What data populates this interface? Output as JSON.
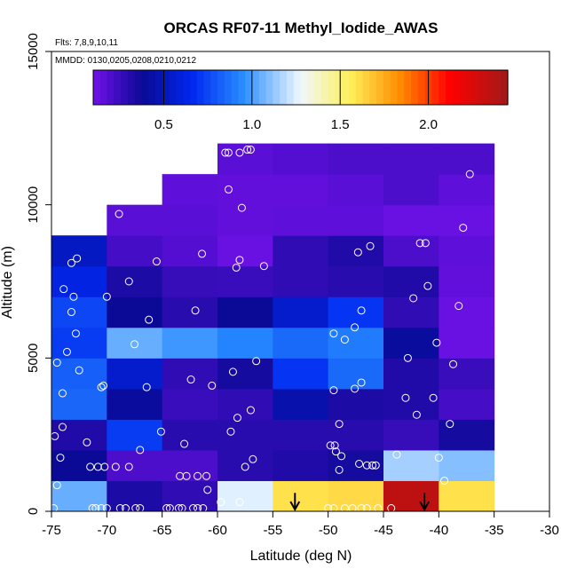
{
  "chart_data": {
    "type": "heatmap",
    "title": "ORCAS RF07-11 Methyl_Iodide_AWAS",
    "flights_note": "Flts: 7,8,9,10,11",
    "dates_note": "MMDD: 0130,0205,0208,0210,0212",
    "xlabel": "Latitude (deg N)",
    "ylabel": "Altitude (m)",
    "xlim": [
      -75,
      -30
    ],
    "ylim": [
      0,
      15000
    ],
    "x_ticks": [
      -75,
      -70,
      -65,
      -60,
      -55,
      -50,
      -45,
      -40,
      -35,
      -30
    ],
    "y_ticks": [
      0,
      5000,
      10000,
      15000
    ],
    "cell_width_deg": 5,
    "cell_height_m": 1000,
    "colorbar": {
      "range": [
        0.1,
        2.45
      ],
      "ticks": [
        0.5,
        1.0,
        1.5,
        2.0
      ],
      "tick_labels": [
        "0.5",
        "1.0",
        "1.5",
        "2.0"
      ]
    },
    "lat_bin_starts": [
      -75,
      -70,
      -65,
      -60,
      -55,
      -50,
      -45,
      -40
    ],
    "alt_bin_starts": [
      0,
      1000,
      2000,
      3000,
      4000,
      5000,
      6000,
      7000,
      8000,
      9000,
      10000,
      11000
    ],
    "grid_values": [
      [
        1.05,
        0.33,
        0.28,
        1.25,
        1.6,
        1.62,
        2.35,
        1.6
      ],
      [
        0.38,
        0.2,
        0.2,
        0.3,
        0.32,
        0.35,
        1.15,
        1.1
      ],
      [
        0.32,
        0.72,
        0.3,
        0.3,
        0.3,
        0.3,
        0.26,
        0.35
      ],
      [
        0.84,
        0.4,
        0.25,
        0.28,
        0.45,
        0.33,
        0.32,
        0.22
      ],
      [
        0.82,
        0.55,
        0.28,
        0.35,
        0.7,
        0.85,
        0.32,
        0.25
      ],
      [
        0.72,
        1.05,
        0.98,
        0.92,
        0.85,
        0.9,
        0.4,
        0.12
      ],
      [
        0.75,
        0.38,
        0.3,
        0.38,
        0.55,
        0.7,
        0.28,
        0.12
      ],
      [
        0.62,
        0.33,
        0.26,
        0.25,
        0.28,
        0.3,
        0.32,
        0.14
      ],
      [
        0.52,
        0.22,
        0.18,
        0.12,
        0.28,
        0.32,
        0.2,
        0.15
      ],
      [
        null,
        0.16,
        0.16,
        0.14,
        0.15,
        0.15,
        0.12,
        0.12
      ],
      [
        null,
        null,
        0.15,
        0.14,
        0.14,
        0.16,
        0.2,
        0.15
      ],
      [
        null,
        null,
        null,
        0.16,
        0.18,
        0.2,
        0.2,
        0.2
      ]
    ],
    "sample_points": [
      [
        -74.8,
        100
      ],
      [
        -74.5,
        850
      ],
      [
        -74.7,
        2450
      ],
      [
        -74.2,
        1750
      ],
      [
        -74.0,
        2750
      ],
      [
        -74.0,
        3850
      ],
      [
        -74.5,
        4850
      ],
      [
        -73.6,
        5200
      ],
      [
        -73.9,
        7250
      ],
      [
        -73.2,
        8100
      ],
      [
        -72.7,
        8250
      ],
      [
        -73.0,
        7000
      ],
      [
        -73.2,
        6500
      ],
      [
        -72.8,
        5800
      ],
      [
        -72.5,
        4600
      ],
      [
        -71.8,
        2250
      ],
      [
        -71.5,
        1450
      ],
      [
        -70.8,
        1450
      ],
      [
        -70.2,
        1450
      ],
      [
        -69.2,
        1450
      ],
      [
        -68.0,
        1450
      ],
      [
        -71.3,
        100
      ],
      [
        -71.0,
        100
      ],
      [
        -70.5,
        100
      ],
      [
        -70.0,
        100
      ],
      [
        -68.8,
        100
      ],
      [
        -68.3,
        100
      ],
      [
        -67.4,
        100
      ],
      [
        -67.0,
        100
      ],
      [
        -70.5,
        4050
      ],
      [
        -70.3,
        4100
      ],
      [
        -70.0,
        7000
      ],
      [
        -68.9,
        9700
      ],
      [
        -68.0,
        7500
      ],
      [
        -67.5,
        5450
      ],
      [
        -67.0,
        2000
      ],
      [
        -66.4,
        4050
      ],
      [
        -66.2,
        6250
      ],
      [
        -65.5,
        8150
      ],
      [
        -65.1,
        2600
      ],
      [
        -64.6,
        100
      ],
      [
        -64.3,
        100
      ],
      [
        -63.5,
        100
      ],
      [
        -63.2,
        100
      ],
      [
        -62.2,
        100
      ],
      [
        -61.8,
        100
      ],
      [
        -61.3,
        100
      ],
      [
        -63.4,
        1150
      ],
      [
        -62.8,
        1150
      ],
      [
        -61.8,
        1150
      ],
      [
        -61.0,
        1150
      ],
      [
        -60.9,
        700
      ],
      [
        -63.0,
        2200
      ],
      [
        -62.4,
        4300
      ],
      [
        -62.0,
        6550
      ],
      [
        -61.4,
        8400
      ],
      [
        -60.5,
        4100
      ],
      [
        -59.7,
        300
      ],
      [
        -58.0,
        300
      ],
      [
        -57.5,
        1450
      ],
      [
        -56.8,
        1700
      ],
      [
        -58.8,
        2600
      ],
      [
        -58.2,
        3050
      ],
      [
        -57.0,
        3300
      ],
      [
        -58.6,
        4550
      ],
      [
        -56.5,
        4900
      ],
      [
        -58.3,
        7950
      ],
      [
        -58.0,
        8200
      ],
      [
        -55.8,
        8000
      ],
      [
        -57.8,
        9900
      ],
      [
        -59.0,
        10500
      ],
      [
        -59.3,
        11700
      ],
      [
        -59.0,
        11700
      ],
      [
        -58.0,
        11700
      ],
      [
        -57.3,
        11800
      ],
      [
        -57.0,
        11800
      ],
      [
        -50.0,
        100
      ],
      [
        -49.5,
        100
      ],
      [
        -48.5,
        100
      ],
      [
        -47.8,
        100
      ],
      [
        -47.0,
        100
      ],
      [
        -46.5,
        100
      ],
      [
        -45.5,
        100
      ],
      [
        -44.3,
        100
      ],
      [
        -49.3,
        1950
      ],
      [
        -48.8,
        1800
      ],
      [
        -49.0,
        1350
      ],
      [
        -47.2,
        1550
      ],
      [
        -46.5,
        1500
      ],
      [
        -46.0,
        1500
      ],
      [
        -45.7,
        1500
      ],
      [
        -49.0,
        2850
      ],
      [
        -49.8,
        2150
      ],
      [
        -49.4,
        2150
      ],
      [
        -49.5,
        3950
      ],
      [
        -47.6,
        4000
      ],
      [
        -47.0,
        4200
      ],
      [
        -49.5,
        5800
      ],
      [
        -48.5,
        5600
      ],
      [
        -47.6,
        6000
      ],
      [
        -47.0,
        6550
      ],
      [
        -47.3,
        8450
      ],
      [
        -46.2,
        8650
      ],
      [
        -43.8,
        1850
      ],
      [
        -43.0,
        3700
      ],
      [
        -42.0,
        3150
      ],
      [
        -40.5,
        3700
      ],
      [
        -40.2,
        5500
      ],
      [
        -42.8,
        5000
      ],
      [
        -42.3,
        6950
      ],
      [
        -41.0,
        7350
      ],
      [
        -41.7,
        8750
      ],
      [
        -41.2,
        8750
      ],
      [
        -40.0,
        1750
      ],
      [
        -39.5,
        1000
      ],
      [
        -39.0,
        2850
      ],
      [
        -38.7,
        4800
      ],
      [
        -38.2,
        6700
      ],
      [
        -37.8,
        9250
      ],
      [
        -37.2,
        11000
      ]
    ],
    "arrows": [
      {
        "lat": -53.0,
        "label": "down"
      },
      {
        "lat": -41.3,
        "label": "down"
      }
    ]
  }
}
